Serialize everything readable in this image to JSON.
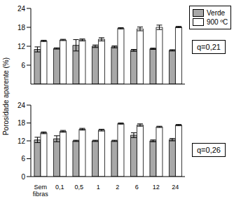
{
  "ylabel": "Porosidade aparente (%)",
  "chart_data": [
    {
      "type": "bar",
      "annotation": "q=0,21",
      "legend": "upper right",
      "tick_labels": "y",
      "categories": [
        "Sem fibras",
        "0,1",
        "0,5",
        "1",
        "2",
        "6",
        "12",
        "24"
      ],
      "series": [
        {
          "name": "Verde",
          "color": "#a8a8a8",
          "values": [
            11,
            11.3,
            12.3,
            12,
            11.8,
            10.7,
            11.2,
            10.7
          ],
          "errors": [
            0.8,
            0.2,
            1.8,
            0.4,
            0.3,
            0.3,
            0.2,
            0.2
          ]
        },
        {
          "name": "900 ºC",
          "color": "#ffffff",
          "values": [
            13.7,
            14,
            14,
            14.2,
            17.7,
            17.5,
            18,
            18.1
          ],
          "errors": [
            0.2,
            0.2,
            0.3,
            0.5,
            0.2,
            0.6,
            0.7,
            0.2
          ]
        }
      ],
      "ylim": [
        0,
        24
      ],
      "yticks": [
        0,
        6,
        12,
        18,
        24
      ]
    },
    {
      "type": "bar",
      "annotation": "q=0,26",
      "categories": [
        "Sem fibras",
        "0,1",
        "0,5",
        "1",
        "2",
        "6",
        "12",
        "24"
      ],
      "series": [
        {
          "name": "Verde",
          "color": "#a8a8a8",
          "values": [
            12.3,
            12.7,
            12,
            12,
            12,
            13.9,
            12,
            12.4
          ],
          "errors": [
            0.9,
            1,
            0.2,
            0.2,
            0.2,
            0.8,
            0.3,
            0.4
          ]
        },
        {
          "name": "900 ºC",
          "color": "#ffffff",
          "values": [
            14.7,
            15.2,
            15.9,
            15.6,
            17.8,
            17.3,
            16.7,
            17.3
          ],
          "errors": [
            0.3,
            0.3,
            0.3,
            0.3,
            0.2,
            0.4,
            0.2,
            0.2
          ]
        }
      ],
      "ylim": [
        0,
        24
      ],
      "yticks": [
        0,
        6,
        12,
        18,
        24
      ]
    }
  ]
}
